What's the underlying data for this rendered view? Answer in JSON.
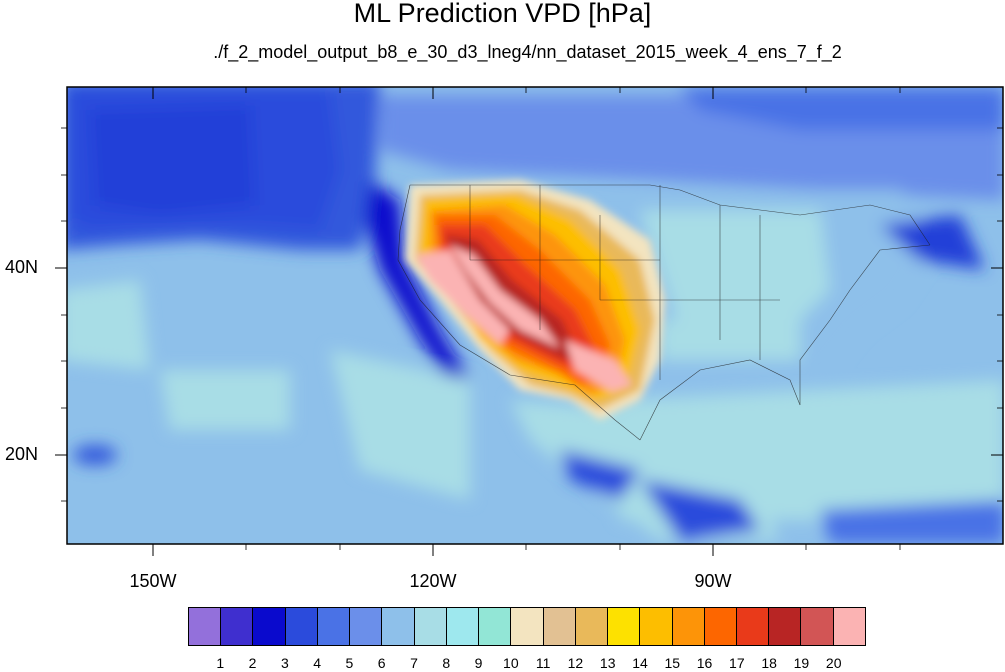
{
  "title": "ML Prediction VPD [hPa]",
  "subtitle": "./f_2_model_output_b8_e_30_d3_lneg4/nn_dataset_2015_week_4_ens_7_f_2",
  "map": {
    "lon_labels": [
      "150W",
      "120W",
      "90W"
    ],
    "lat_labels": [
      "40N",
      "20N"
    ],
    "lon_range": [
      -160,
      -60
    ],
    "lat_range": [
      10,
      59
    ]
  },
  "colorbar": {
    "labels": [
      "1",
      "2",
      "3",
      "4",
      "5",
      "6",
      "7",
      "8",
      "9",
      "10",
      "11",
      "12",
      "13",
      "14",
      "15",
      "16",
      "17",
      "18",
      "19",
      "20"
    ],
    "colors": [
      "#9370db",
      "#3f2fcf",
      "#0a0acd",
      "#2b4bdc",
      "#4a72e6",
      "#6b8fea",
      "#8ec0ea",
      "#a8dde6",
      "#9ee8ee",
      "#92e6d6",
      "#f3e4c0",
      "#e2c193",
      "#e9b95a",
      "#fde100",
      "#fdbe00",
      "#fd9408",
      "#fd6600",
      "#e93a1a",
      "#b82524",
      "#d25555",
      "#fbb3b3"
    ]
  }
}
